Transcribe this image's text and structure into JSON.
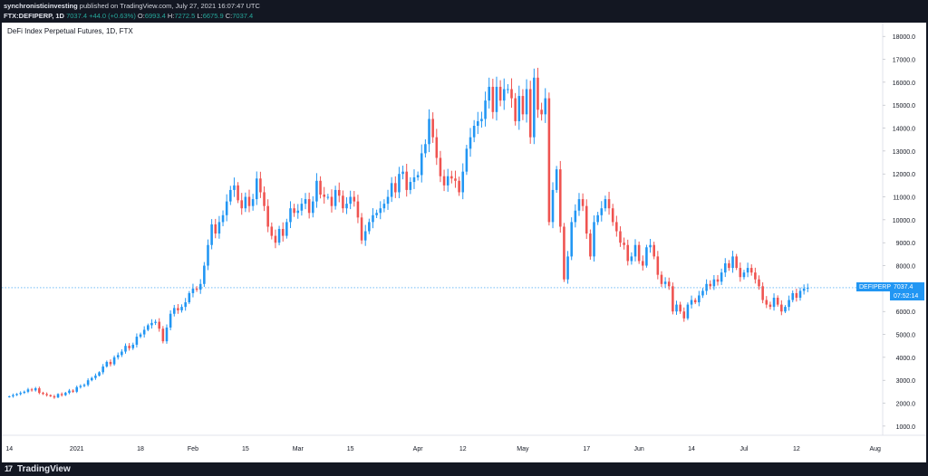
{
  "header": {
    "user": "synchronisticinvesting",
    "published": "published on TradingView.com, July 27, 2021 16:07:47 UTC",
    "symbol_interval": "FTX:DEFIPERP, 1D",
    "last": "7037.4",
    "change": "+44.0 (+0.63%)",
    "o_label": "O:",
    "o": "6993.4",
    "h_label": "H:",
    "h": "7272.5",
    "l_label": "L:",
    "l": "6675.9",
    "c_label": "C:",
    "c": "7037.4"
  },
  "chart_title": "DeFi Index Perpetual Futures, 1D, FTX",
  "price_label": {
    "symbol": "DEFIPERP",
    "price": "7037.4",
    "countdown": "07:52:14"
  },
  "footer": {
    "logo": "TradingView"
  },
  "colors": {
    "up": "#2196f3",
    "down": "#ef5350",
    "background": "#ffffff",
    "frame": "#131722",
    "text": "#131722"
  },
  "chart_data": {
    "type": "candlestick",
    "title": "DeFi Index Perpetual Futures, 1D, FTX",
    "x_ticks": [
      "14",
      "2021",
      "18",
      "Feb",
      "15",
      "Mar",
      "15",
      "Apr",
      "12",
      "May",
      "17",
      "Jun",
      "14",
      "Jul",
      "12",
      "Aug"
    ],
    "x_tick_days": [
      0,
      18,
      35,
      49,
      63,
      77,
      91,
      109,
      121,
      137,
      154,
      168,
      182,
      196,
      210,
      231
    ],
    "y_ticks": [
      1000,
      2000,
      3000,
      4000,
      5000,
      6000,
      7000,
      8000,
      9000,
      10000,
      11000,
      12000,
      13000,
      14000,
      15000,
      16000,
      17000,
      18000
    ],
    "ylim": [
      600,
      18600
    ],
    "xlim_days": [
      -2,
      233
    ],
    "current_price": 7037.4,
    "closes": [
      2300,
      2350,
      2400,
      2450,
      2500,
      2600,
      2560,
      2650,
      2450,
      2400,
      2350,
      2300,
      2250,
      2400,
      2350,
      2450,
      2550,
      2500,
      2700,
      2750,
      2800,
      3000,
      3100,
      3200,
      3350,
      3600,
      3800,
      3700,
      4000,
      4100,
      4250,
      4500,
      4400,
      4550,
      4900,
      5000,
      5200,
      5400,
      5500,
      5550,
      5250,
      4700,
      5300,
      5900,
      6150,
      6050,
      6200,
      6400,
      6800,
      7000,
      6950,
      7200,
      8000,
      8900,
      9800,
      9400,
      9900,
      10200,
      10800,
      11300,
      11500,
      10850,
      10500,
      11000,
      10600,
      10900,
      11800,
      11200,
      10600,
      9700,
      9300,
      9000,
      9600,
      9300,
      9900,
      10500,
      10300,
      10400,
      10700,
      10900,
      10300,
      10800,
      11700,
      11100,
      11000,
      11000,
      10600,
      11300,
      11050,
      10500,
      10700,
      11000,
      10800,
      10100,
      9100,
      9500,
      9900,
      10200,
      10300,
      10500,
      10700,
      11000,
      11600,
      11200,
      12000,
      12100,
      11300,
      11650,
      11850,
      11950,
      12900,
      13300,
      14400,
      13600,
      12700,
      11900,
      11500,
      11900,
      11800,
      11700,
      11200,
      12100,
      13100,
      13600,
      14100,
      14300,
      14400,
      15200,
      15800,
      14700,
      15800,
      15200,
      15700,
      15700,
      15300,
      14300,
      15400,
      14600,
      15700,
      13600,
      16200,
      14800,
      14600,
      15300,
      9900,
      11300,
      12200,
      9700,
      7400,
      8400,
      9900,
      10400,
      10900,
      10600,
      9400,
      8400,
      9900,
      10200,
      10500,
      10900,
      10500,
      9900,
      9500,
      9000,
      8900,
      8200,
      8400,
      8900,
      8200,
      8000,
      8800,
      8900,
      8400,
      7600,
      7200,
      7300,
      7100,
      6000,
      6300,
      6000,
      5700,
      6300,
      6500,
      6400,
      6700,
      6900,
      7200,
      7100,
      7400,
      7300,
      7700,
      8100,
      7900,
      8400,
      7900,
      7500,
      7700,
      7900,
      7700,
      7400,
      7100,
      6500,
      6300,
      6200,
      6600,
      6300,
      6000,
      6200,
      6500,
      6800,
      6600,
      6900,
      7000,
      7037.4
    ]
  }
}
